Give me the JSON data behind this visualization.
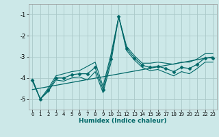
{
  "xlabel": "Humidex (Indice chaleur)",
  "bg_color": "#cce8e8",
  "grid_color": "#aac8c8",
  "line_color": "#006868",
  "x_data": [
    0,
    1,
    2,
    3,
    4,
    5,
    6,
    7,
    8,
    9,
    10,
    11,
    12,
    13,
    14,
    15,
    16,
    17,
    18,
    19,
    20,
    21,
    22,
    23
  ],
  "y_main": [
    -4.1,
    -5.0,
    -4.6,
    -4.0,
    -4.0,
    -3.85,
    -3.8,
    -3.8,
    -3.5,
    -4.55,
    -3.1,
    -1.1,
    -2.6,
    -3.05,
    -3.4,
    -3.5,
    -3.45,
    -3.55,
    -3.7,
    -3.5,
    -3.55,
    -3.35,
    -3.05,
    -3.05
  ],
  "y_upper": [
    -4.05,
    -5.0,
    -4.5,
    -3.9,
    -3.8,
    -3.7,
    -3.65,
    -3.45,
    -3.25,
    -4.4,
    -2.9,
    -1.1,
    -2.5,
    -2.95,
    -3.3,
    -3.3,
    -3.25,
    -3.3,
    -3.35,
    -3.25,
    -3.25,
    -3.1,
    -2.85,
    -2.85
  ],
  "y_lower": [
    -4.15,
    -5.0,
    -4.65,
    -4.1,
    -4.15,
    -4.0,
    -3.95,
    -4.1,
    -3.7,
    -4.7,
    -3.3,
    -1.1,
    -2.7,
    -3.15,
    -3.5,
    -3.65,
    -3.6,
    -3.75,
    -3.9,
    -3.7,
    -3.8,
    -3.55,
    -3.25,
    -3.25
  ],
  "trend_x": [
    0,
    23
  ],
  "trend_y": [
    -4.55,
    -3.0
  ],
  "ylim": [
    -5.5,
    -0.5
  ],
  "xlim": [
    -0.5,
    23.5
  ],
  "yticks": [
    -5,
    -4,
    -3,
    -2,
    -1
  ],
  "xticks": [
    0,
    1,
    2,
    3,
    4,
    5,
    6,
    7,
    8,
    9,
    10,
    11,
    12,
    13,
    14,
    15,
    16,
    17,
    18,
    19,
    20,
    21,
    22,
    23
  ]
}
